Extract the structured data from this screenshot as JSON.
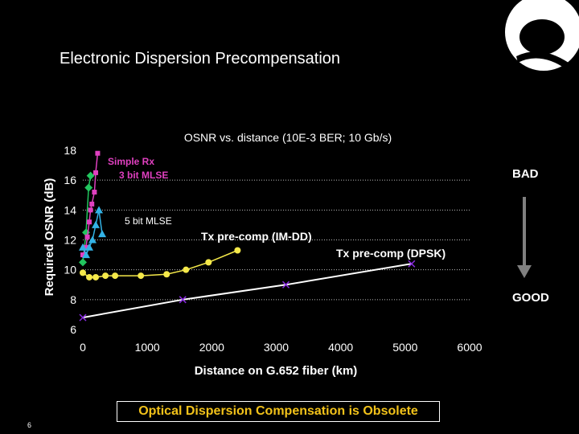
{
  "slide": {
    "title": "Electronic Dispersion Precompensation",
    "footer": "Optical Dispersion Compensation is Obsolete",
    "page_number": "6",
    "bad_label": "BAD",
    "good_label": "GOOD"
  },
  "colors": {
    "background": "#000000",
    "footer_text": "#f2c21a",
    "yellow_series": "#f5e94a",
    "white_series": "#ffffff",
    "purple_marker": "#8a2be2",
    "magenta_series": "#e040c0",
    "cyan_series": "#33b3e6",
    "green_series": "#22c55e",
    "arrow_gray": "#808080"
  },
  "chart_data": {
    "type": "line",
    "title": "OSNR vs. distance (10E-3 BER; 10 Gb/s)",
    "xlabel": "Distance on G.652 fiber (km)",
    "ylabel": "Required OSNR (dB)",
    "xlim": [
      0,
      6000
    ],
    "ylim": [
      6,
      18
    ],
    "x_ticks": [
      0,
      1000,
      2000,
      3000,
      4000,
      5000,
      6000
    ],
    "y_ticks": [
      6,
      8,
      10,
      12,
      14,
      16,
      18
    ],
    "grid": "dotted horizontal",
    "series": [
      {
        "name": "Simple Rx",
        "color": "#22c55e",
        "marker": "diamond",
        "x": [
          0,
          50,
          90,
          120
        ],
        "y": [
          10.5,
          12.5,
          15.5,
          16.3
        ]
      },
      {
        "name": "3 bit MLSE",
        "color": "#e040c0",
        "marker": "square",
        "x": [
          0,
          50,
          70,
          100,
          120,
          140,
          180,
          200,
          230
        ],
        "y": [
          11.0,
          11.5,
          12.2,
          13.2,
          14.0,
          14.4,
          15.2,
          16.5,
          17.8
        ]
      },
      {
        "name": "5 bit MLSE",
        "color": "#33b3e6",
        "marker": "triangle",
        "x": [
          0,
          50,
          100,
          150,
          200,
          250,
          300
        ],
        "y": [
          11.5,
          11.0,
          11.5,
          12.0,
          13.0,
          14.0,
          12.4
        ]
      },
      {
        "name": "Tx pre-comp (IM-DD)",
        "color": "#f5e94a",
        "marker": "circle",
        "x": [
          0,
          100,
          200,
          350,
          500,
          900,
          1300,
          1600,
          1950,
          2400
        ],
        "y": [
          9.8,
          9.5,
          9.5,
          9.6,
          9.6,
          9.6,
          9.7,
          10.0,
          10.5,
          11.3
        ]
      },
      {
        "name": "Tx pre-comp (DPSK)",
        "color": "#ffffff",
        "marker": "x",
        "x": [
          0,
          1550,
          3150,
          5100
        ],
        "y": [
          6.8,
          8.0,
          9.0,
          10.4
        ]
      }
    ],
    "annotations": [
      "Simple Rx",
      "3 bit MLSE",
      "5 bit MLSE",
      "Tx pre-comp (IM-DD)",
      "Tx pre-comp (DPSK)"
    ]
  }
}
